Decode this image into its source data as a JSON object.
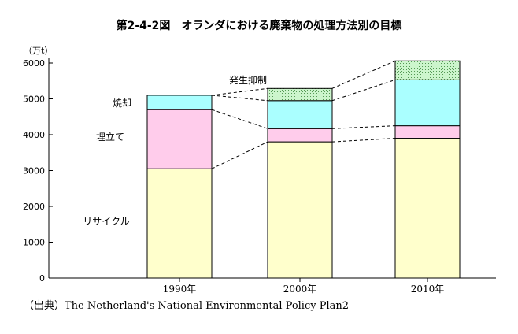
{
  "chart_data": {
    "type": "bar",
    "stacked": true,
    "title": "第2-4-2図　オランダにおける廃棄物の処理方法別の目標",
    "unit_label": "（万t）",
    "categories": [
      "1990年",
      "2000年",
      "2010年"
    ],
    "series": [
      {
        "name": "リサイクル",
        "values": [
          3050,
          3800,
          3900
        ],
        "color": "#ffffcc"
      },
      {
        "name": "埋立て",
        "values": [
          1650,
          370,
          350
        ],
        "color": "#ffcceb"
      },
      {
        "name": "焼却",
        "values": [
          400,
          780,
          1280
        ],
        "color": "#aaffff"
      },
      {
        "name": "発生抑制",
        "values": [
          0,
          340,
          530
        ],
        "color": "#ccf5cc"
      }
    ],
    "yticks": [
      "0",
      "1000",
      "2000",
      "3000",
      "4000",
      "5000",
      "6000"
    ],
    "ylim": [
      0,
      6000
    ],
    "grid": false,
    "legend": "inline labels left of bars",
    "source": "（出典）The Netherland's National Environmental Policy Plan2"
  }
}
